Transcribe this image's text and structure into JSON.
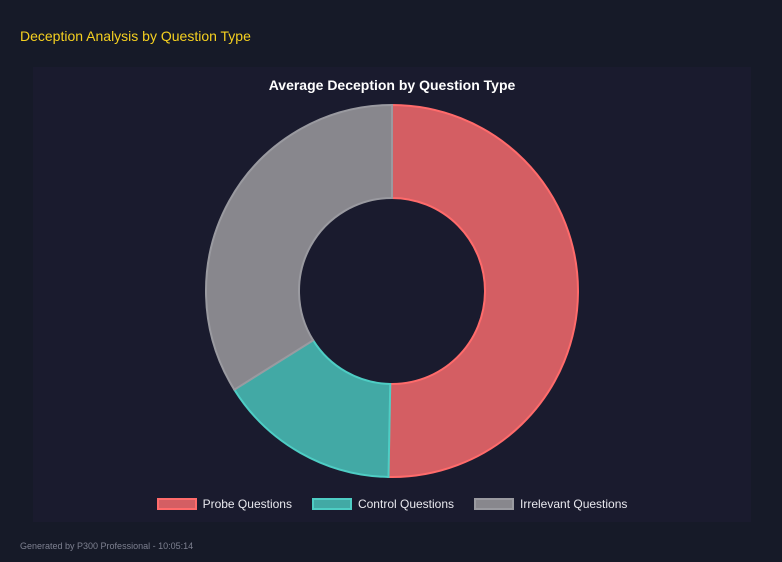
{
  "heading": "Deception Analysis by Question Type",
  "footer": "Generated by P300 Professional - 10:05:14",
  "chart_data": {
    "type": "pie",
    "variant": "doughnut",
    "title": "Average Deception by Question Type",
    "categories": [
      "Probe Questions",
      "Control Questions",
      "Irrelevant Questions"
    ],
    "values": [
      50.3,
      15.8,
      33.9
    ],
    "colors": [
      {
        "fill": "#d45e63",
        "border": "#ff6b6b"
      },
      {
        "fill": "#42a9a5",
        "border": "#4ecdc4"
      },
      {
        "fill": "#88878d",
        "border": "#9a9aa0"
      }
    ],
    "legend": "bottom"
  }
}
